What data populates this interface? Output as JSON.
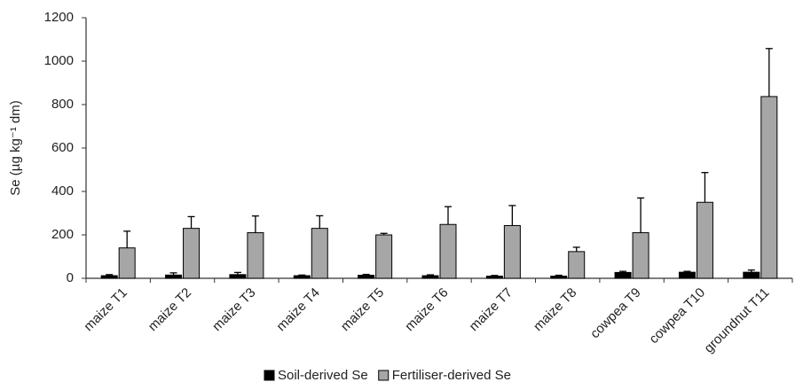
{
  "chart_data": {
    "type": "bar",
    "y_label": "Se (µg kg⁻¹ dm)",
    "categories": [
      "maize T1",
      "maize T2",
      "maize T3",
      "maize T4",
      "maize T5",
      "maize T6",
      "maize T7",
      "maize T8",
      "cowpea T9",
      "cowpea T10",
      "groundnut T11"
    ],
    "series": [
      {
        "name": "Soil-derived Se",
        "color": "#000000",
        "values": [
          12,
          15,
          17,
          12,
          14,
          12,
          10,
          10,
          27,
          28,
          28
        ],
        "errors": [
          5,
          10,
          10,
          3,
          4,
          4,
          3,
          4,
          5,
          4,
          10
        ]
      },
      {
        "name": "Fertiliser-derived Se",
        "color": "#a6a6a6",
        "values": [
          140,
          230,
          210,
          230,
          200,
          248,
          243,
          123,
          210,
          350,
          837
        ],
        "errors": [
          77,
          54,
          77,
          58,
          7,
          82,
          92,
          20,
          160,
          137,
          221
        ]
      }
    ],
    "ylim": [
      0,
      1200
    ],
    "yticks": [
      0,
      200,
      400,
      600,
      800,
      1000,
      1200
    ],
    "legend": "bottom"
  }
}
